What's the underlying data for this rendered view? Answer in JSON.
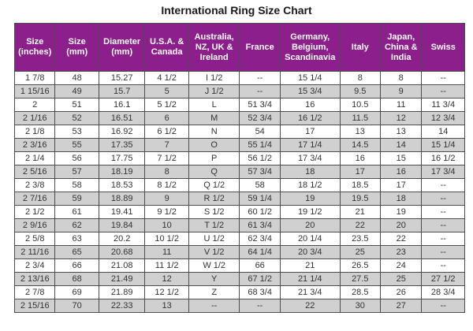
{
  "page": {
    "title": "International Ring Size Chart"
  },
  "colors": {
    "header_bg": "#8D1F8D",
    "header_text": "#FFFFFF",
    "row_odd_bg": "#FFFFFF",
    "row_even_bg": "#D0D0D0",
    "grid_border": "#4D4D4D",
    "cell_text": "#333333",
    "title_text": "#1A1A1A"
  },
  "chart_data": {
    "type": "table",
    "title": "International Ring Size Chart",
    "columns": [
      "Size (inches)",
      "Size (mm)",
      "Diameter (mm)",
      "U.S.A. & Canada",
      "Australia, NZ, UK & Ireland",
      "France",
      "Germany, Belgium, Scandinavia",
      "Italy",
      "Japan, China & India",
      "Swiss"
    ],
    "rows": [
      [
        "1 7/8",
        "48",
        "15.27",
        "4 1/2",
        "I 1/2",
        "--",
        "15 1/4",
        "8",
        "8",
        "--"
      ],
      [
        "1 15/16",
        "49",
        "15.7",
        "5",
        "J 1/2",
        "--",
        "15 3/4",
        "9.5",
        "9",
        "--"
      ],
      [
        "2",
        "51",
        "16.1",
        "5 1/2",
        "L",
        "51 3/4",
        "16",
        "10.5",
        "11",
        "11 3/4"
      ],
      [
        "2 1/16",
        "52",
        "16.51",
        "6",
        "M",
        "52 3/4",
        "16 1/2",
        "11.5",
        "12",
        "12 3/4"
      ],
      [
        "2 1/8",
        "53",
        "16.92",
        "6 1/2",
        "N",
        "54",
        "17",
        "13",
        "13",
        "14"
      ],
      [
        "2 3/16",
        "55",
        "17.35",
        "7",
        "O",
        "55 1/4",
        "17 1/4",
        "14.5",
        "14",
        "15 1/4"
      ],
      [
        "2 1/4",
        "56",
        "17.75",
        "7 1/2",
        "P",
        "56 1/2",
        "17 3/4",
        "16",
        "15",
        "16 1/2"
      ],
      [
        "2 5/16",
        "57",
        "18.19",
        "8",
        "Q",
        "57 3/4",
        "18",
        "17",
        "16",
        "17 3/4"
      ],
      [
        "2 3/8",
        "58",
        "18.53",
        "8 1/2",
        "Q 1/2",
        "58",
        "18 1/2",
        "18.5",
        "17",
        "--"
      ],
      [
        "2 7/16",
        "59",
        "18.89",
        "9",
        "R 1/2",
        "59 1/4",
        "19",
        "19.5",
        "18",
        "--"
      ],
      [
        "2 1/2",
        "61",
        "19.41",
        "9 1/2",
        "S 1/2",
        "60 1/2",
        "19 1/2",
        "21",
        "19",
        "--"
      ],
      [
        "2 9/16",
        "62",
        "19.84",
        "10",
        "T 1/2",
        "61 3/4",
        "20",
        "22",
        "20",
        "--"
      ],
      [
        "2 5/8",
        "63",
        "20.2",
        "10 1/2",
        "U 1/2",
        "62 3/4",
        "20 1/4",
        "23.5",
        "22",
        "--"
      ],
      [
        "2 11/16",
        "65",
        "20.68",
        "11",
        "V 1/2",
        "64 1/4",
        "20 3/4",
        "25",
        "23",
        "--"
      ],
      [
        "2 3/4",
        "66",
        "21.08",
        "11 1/2",
        "W 1/2",
        "66",
        "21",
        "26.5",
        "24",
        "--"
      ],
      [
        "2 13/16",
        "68",
        "21.49",
        "12",
        "Y",
        "67 1/2",
        "21 1/4",
        "27.5",
        "25",
        "27 1/2"
      ],
      [
        "2 7/8",
        "69",
        "21.89",
        "12 1/2",
        "Z",
        "68 3/4",
        "21 3/4",
        "28.5",
        "26",
        "28 3/4"
      ],
      [
        "2 15/16",
        "70",
        "22.33",
        "13",
        "--",
        "--",
        "22",
        "30",
        "27",
        "--"
      ]
    ]
  }
}
